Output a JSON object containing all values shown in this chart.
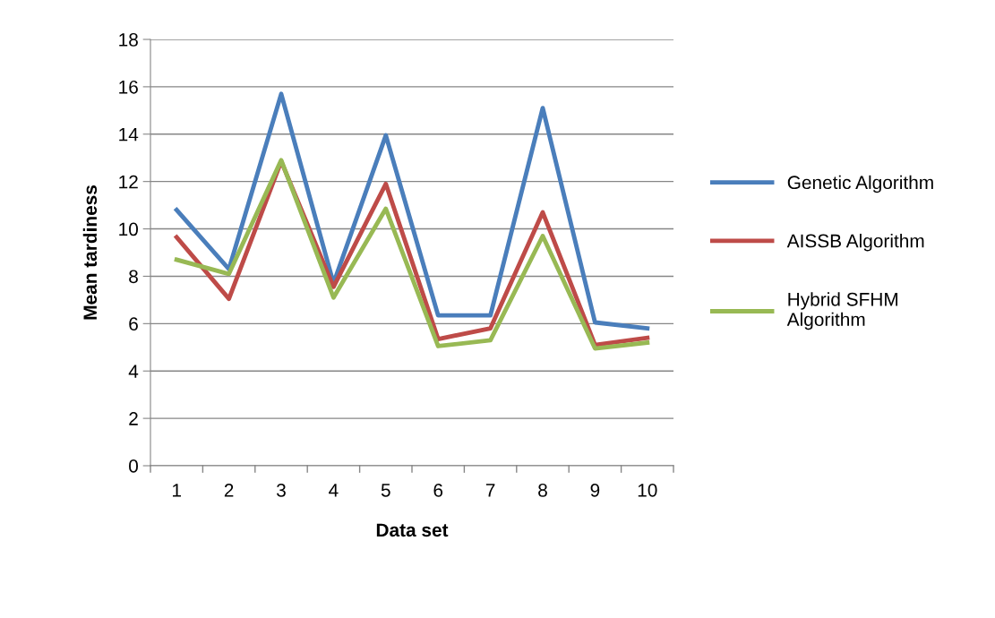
{
  "chart_data": {
    "type": "line",
    "xlabel": "Data set",
    "ylabel": "Mean tardiness",
    "categories": [
      "1",
      "2",
      "3",
      "4",
      "5",
      "6",
      "7",
      "8",
      "9",
      "10"
    ],
    "series": [
      {
        "name": "Genetic Algorithm",
        "color": "#4a7ebb",
        "values": [
          10.8,
          8.3,
          15.7,
          7.7,
          13.95,
          6.35,
          6.35,
          15.1,
          6.05,
          5.8
        ]
      },
      {
        "name": "AISSB Algorithm",
        "color": "#be4b48",
        "values": [
          9.65,
          7.05,
          12.85,
          7.55,
          11.9,
          5.35,
          5.8,
          10.7,
          5.1,
          5.4
        ]
      },
      {
        "name": "Hybrid SFHM Algorithm",
        "color": "#98b954",
        "values": [
          8.7,
          8.1,
          12.9,
          7.1,
          10.85,
          5.05,
          5.3,
          9.7,
          4.95,
          5.2
        ]
      }
    ],
    "ylim": [
      0,
      18
    ],
    "yticks": [
      0,
      2,
      4,
      6,
      8,
      10,
      12,
      14,
      16,
      18
    ],
    "grid": "y",
    "legend": "right",
    "marker": "none",
    "line_style": "solid"
  }
}
